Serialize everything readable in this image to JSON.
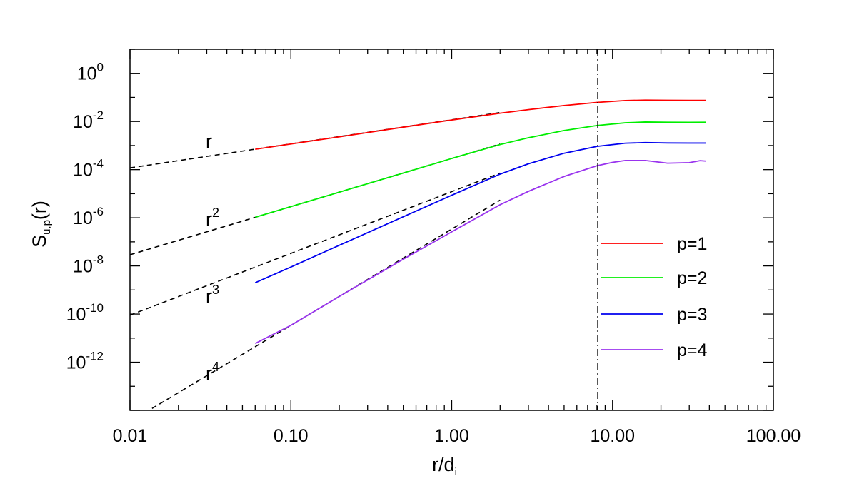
{
  "chart_data": {
    "type": "line",
    "x_scale": "log",
    "y_scale": "log",
    "xlim": [
      0.01,
      100
    ],
    "ylim": [
      1e-14,
      10.0
    ],
    "xlabel": "r/d",
    "xlabel_sub": "i",
    "ylabel": "S",
    "ylabel_sub": "u,p",
    "ylabel_suffix": "(r)",
    "x_ticks": [
      {
        "value": 0.01,
        "label": "0.01"
      },
      {
        "value": 0.1,
        "label": "0.10"
      },
      {
        "value": 1,
        "label": "1.00"
      },
      {
        "value": 10,
        "label": "10.00"
      },
      {
        "value": 100,
        "label": "100.00"
      }
    ],
    "y_ticks": [
      {
        "value": 1,
        "base": "10",
        "exp": "0"
      },
      {
        "value": 0.01,
        "base": "10",
        "exp": "-2"
      },
      {
        "value": 0.0001,
        "base": "10",
        "exp": "-4"
      },
      {
        "value": 1e-06,
        "base": "10",
        "exp": "-6"
      },
      {
        "value": 1e-08,
        "base": "10",
        "exp": "-8"
      },
      {
        "value": 1e-10,
        "base": "10",
        "exp": "-10"
      },
      {
        "value": 1e-12,
        "base": "10",
        "exp": "-12"
      }
    ],
    "legend_position": "right",
    "series": [
      {
        "name": "p=1",
        "color": "#ff0000",
        "x": [
          0.06,
          0.1,
          0.2,
          0.5,
          1,
          2,
          3,
          5,
          8,
          12,
          16,
          22,
          30,
          38
        ],
        "y": [
          0.0007,
          0.00116,
          0.0023,
          0.0058,
          0.0115,
          0.022,
          0.031,
          0.046,
          0.062,
          0.074,
          0.077,
          0.076,
          0.075,
          0.075
        ]
      },
      {
        "name": "p=2",
        "color": "#00ee00",
        "x": [
          0.06,
          0.1,
          0.2,
          0.5,
          1,
          2,
          3,
          5,
          8,
          12,
          16,
          22,
          30,
          38
        ],
        "y": [
          1.05e-06,
          2.9e-06,
          1.16e-05,
          7.2e-05,
          0.00029,
          0.0011,
          0.0021,
          0.0042,
          0.0068,
          0.0088,
          0.0095,
          0.0093,
          0.0092,
          0.0093
        ]
      },
      {
        "name": "p=3",
        "color": "#0000ee",
        "x": [
          0.06,
          0.1,
          0.2,
          0.5,
          1,
          2,
          3,
          5,
          8,
          12,
          16,
          22,
          30,
          38
        ],
        "y": [
          2e-09,
          9e-09,
          7.2e-08,
          1.1e-06,
          8.6e-06,
          6.5e-05,
          0.000175,
          0.00048,
          0.00092,
          0.00125,
          0.00133,
          0.00128,
          0.00127,
          0.00127
        ]
      },
      {
        "name": "p=4",
        "color": "#9933ee",
        "x": [
          0.06,
          0.1,
          0.2,
          0.5,
          1,
          2,
          3,
          5,
          8,
          10,
          12,
          16,
          22,
          30,
          35,
          38
        ],
        "y": [
          6e-12,
          3.4e-11,
          5.4e-10,
          1.9e-08,
          2.6e-07,
          3.5e-06,
          1.25e-05,
          5.2e-05,
          0.000145,
          0.0002,
          0.00024,
          0.00024,
          0.000185,
          0.000195,
          0.000235,
          0.000225
        ]
      }
    ],
    "power_law_guides": [
      {
        "label": "r",
        "exp": "",
        "x": [
          0.01,
          2
        ],
        "y": [
          0.000118,
          0.0235
        ]
      },
      {
        "label": "r",
        "exp": "2",
        "x": [
          0.01,
          2
        ],
        "y": [
          2.9e-08,
          0.00116
        ]
      },
      {
        "label": "r",
        "exp": "3",
        "x": [
          0.01,
          2
        ],
        "y": [
          9e-11,
          7.2e-05
        ]
      },
      {
        "label": "r",
        "exp": "4",
        "x": [
          0.01,
          2
        ],
        "y": [
          3.4e-15,
          5.4e-06
        ]
      }
    ],
    "vertical_line": {
      "x": 8.1,
      "style": "dash-dot"
    }
  }
}
